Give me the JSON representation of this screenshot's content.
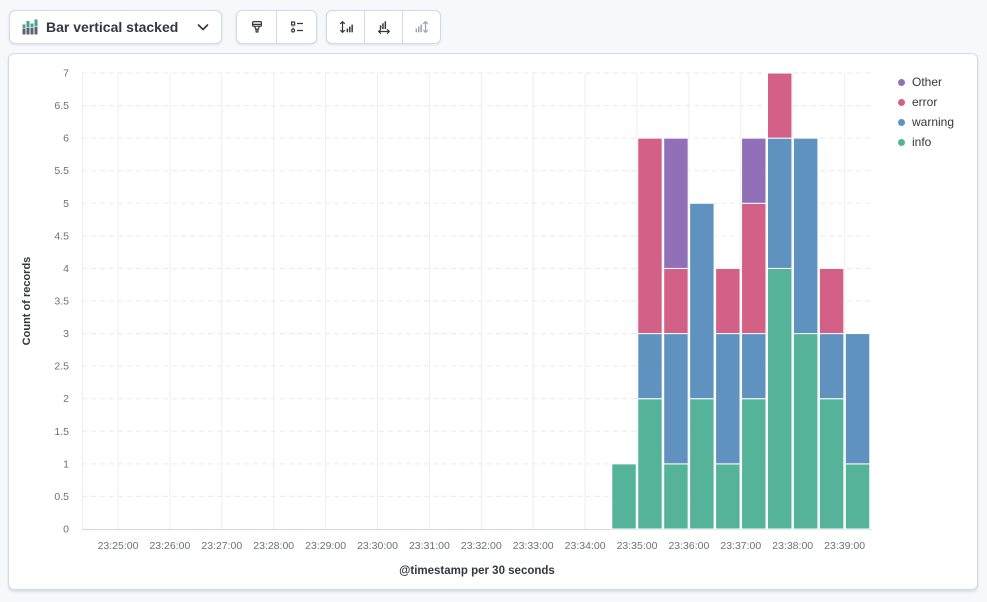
{
  "toolbar": {
    "chart_type_button": {
      "label": "Bar vertical stacked",
      "icon": "bar-vertical-stacked-icon"
    },
    "visual_options_button": {
      "icon": "brush-icon",
      "disabled": false
    },
    "legend_button": {
      "icon": "legend-list-icon",
      "disabled": false
    },
    "left_axis_button": {
      "icon": "axis-left-icon",
      "disabled": false
    },
    "bottom_axis_button": {
      "icon": "axis-bottom-icon",
      "disabled": false
    },
    "right_axis_button": {
      "icon": "axis-right-icon",
      "disabled": true
    }
  },
  "colors": {
    "info": "#54B399",
    "warning": "#6092C0",
    "error": "#D36086",
    "other": "#9170B8",
    "border": "#D3DAE6",
    "text": "#343741",
    "tick_text": "#69707D",
    "grid_vertical": "#ECEEF4",
    "grid_horizontal": "#E7EAF0",
    "page_background": "#F7F8FC"
  },
  "chart_data": {
    "type": "bar",
    "stacked": true,
    "orientation": "vertical",
    "xlabel": "@timestamp per 30 seconds",
    "ylabel": "Count of records",
    "ylim": [
      0,
      7
    ],
    "y_tick_step": 0.5,
    "grid": {
      "horizontal": "dashed",
      "vertical": "solid"
    },
    "x_ticks": [
      "23:25:00",
      "23:26:00",
      "23:27:00",
      "23:28:00",
      "23:29:00",
      "23:30:00",
      "23:31:00",
      "23:32:00",
      "23:33:00",
      "23:34:00",
      "23:35:00",
      "23:36:00",
      "23:37:00",
      "23:38:00",
      "23:39:00"
    ],
    "categories": [
      "23:34:30",
      "23:35:00",
      "23:35:30",
      "23:36:00",
      "23:36:30",
      "23:37:00",
      "23:37:30",
      "23:38:00",
      "23:38:30",
      "23:39:00"
    ],
    "series": [
      {
        "name": "info",
        "color": "#54B399",
        "values": [
          1,
          2,
          1,
          2,
          1,
          2,
          4,
          3,
          2,
          1
        ]
      },
      {
        "name": "warning",
        "color": "#6092C0",
        "values": [
          0,
          1,
          2,
          3,
          2,
          1,
          2,
          3,
          1,
          2
        ]
      },
      {
        "name": "error",
        "color": "#D36086",
        "values": [
          0,
          3,
          1,
          0,
          1,
          2,
          1,
          0,
          1,
          0
        ]
      },
      {
        "name": "Other",
        "color": "#9170B8",
        "values": [
          0,
          0,
          2,
          0,
          0,
          1,
          0,
          0,
          0,
          0
        ]
      }
    ],
    "totals": [
      1,
      6,
      6,
      5,
      4,
      6,
      7,
      6,
      4,
      3
    ],
    "legend": {
      "position": "right",
      "items_top_to_bottom": [
        "Other",
        "error",
        "warning",
        "info"
      ]
    }
  }
}
